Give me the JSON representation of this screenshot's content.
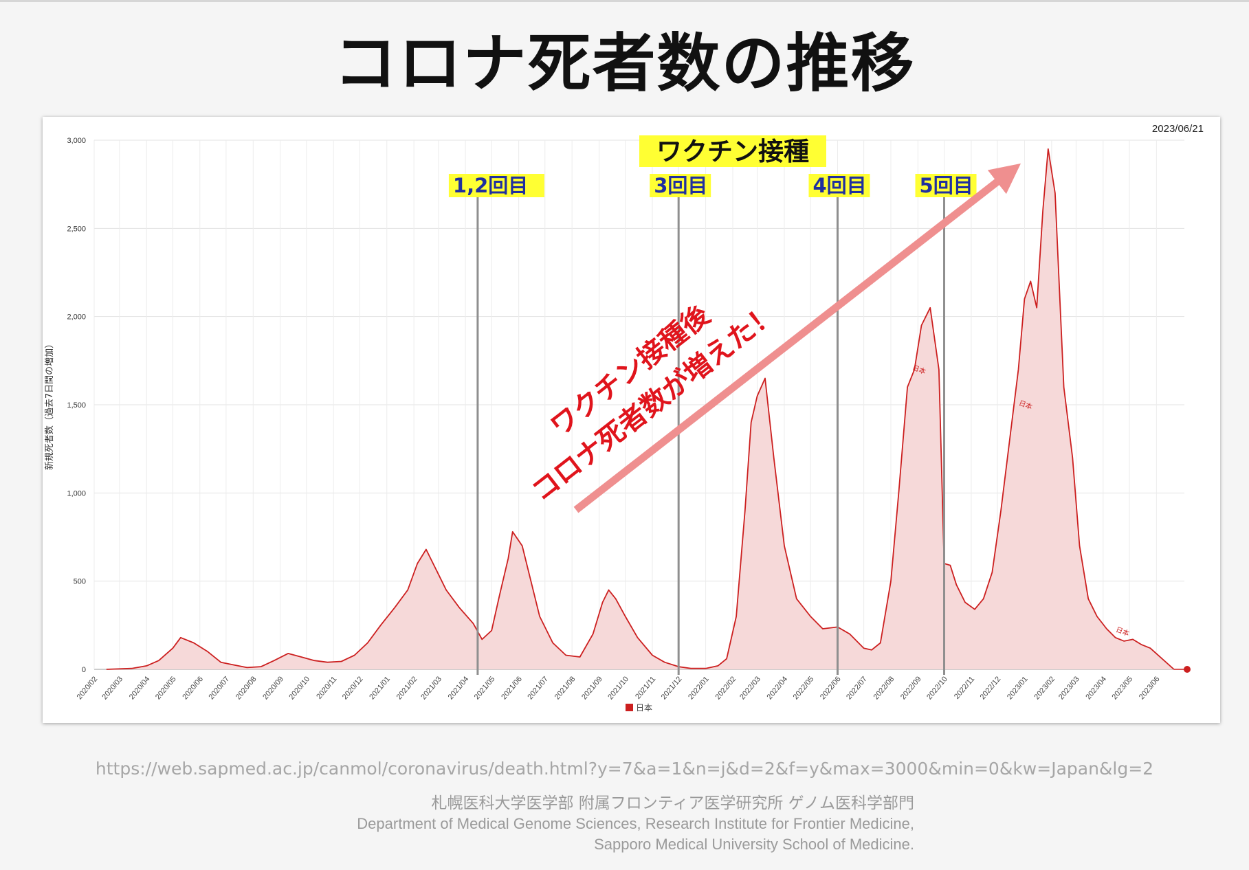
{
  "slide": {
    "title": "コロナ死者数の推移",
    "source_url": "https://web.sapmed.ac.jp/canmol/coronavirus/death.html?y=7&a=1&n=j&d=2&f=y&max=3000&min=0&kw=Japan&lg=2",
    "credit_jp": "札幌医科大学医学部 附属フロンティア医学研究所 ゲノム医科学部門",
    "credit_en_1": "Department of Medical Genome Sciences, Research Institute for Frontier Medicine,",
    "credit_en_2": "Sapporo Medical University School of Medicine."
  },
  "annotations": {
    "vaccine_title": "ワクチン接種",
    "doses": [
      {
        "label": "1,2回目",
        "date": "2021/04/15"
      },
      {
        "label": "3回目",
        "date": "2021/12/01"
      },
      {
        "label": "4回目",
        "date": "2022/06/01"
      },
      {
        "label": "5回目",
        "date": "2022/10/01"
      }
    ],
    "arrow_text_1": "ワクチン接種後",
    "arrow_text_2": "コロナ死者数が増えた！",
    "arrow_color": "#ef8f8f",
    "highlight_color": "#ffff33",
    "dose_text_color": "#1f2fa0",
    "claim_text_color": "#e0141c"
  },
  "chart_data": {
    "type": "area",
    "title": "",
    "date_label": "2023/06/21",
    "ylabel": "新規死者数（過去7日間の増加）",
    "xlabel": "",
    "ylim": [
      0,
      3000
    ],
    "yticks": [
      0,
      500,
      1000,
      1500,
      2000,
      2500,
      3000
    ],
    "ytick_labels": [
      "0",
      "500",
      "1,000",
      "1,500",
      "2,000",
      "2,500",
      "3,000"
    ],
    "grid": true,
    "legend": "bottom-center",
    "series_color": "#cc1f1f",
    "fill_color": "#f6d9d9",
    "xtick_labels": [
      "2020/02",
      "2020/03",
      "2020/04",
      "2020/05",
      "2020/06",
      "2020/07",
      "2020/08",
      "2020/09",
      "2020/10",
      "2020/11",
      "2020/12",
      "2021/01",
      "2021/02",
      "2021/03",
      "2021/04",
      "2021/05",
      "2021/06",
      "2021/07",
      "2021/08",
      "2021/09",
      "2021/10",
      "2021/11",
      "2021/12",
      "2022/01",
      "2022/02",
      "2022/03",
      "2022/04",
      "2022/05",
      "2022/06",
      "2022/07",
      "2022/08",
      "2022/09",
      "2022/10",
      "2022/11",
      "2022/12",
      "2023/01",
      "2023/02",
      "2023/03",
      "2023/04",
      "2023/05",
      "2023/06"
    ],
    "series": [
      {
        "name": "日本",
        "x": [
          "2020/02/15",
          "2020/03/15",
          "2020/04/01",
          "2020/04/15",
          "2020/05/01",
          "2020/05/10",
          "2020/05/25",
          "2020/06/10",
          "2020/06/25",
          "2020/07/10",
          "2020/07/25",
          "2020/08/10",
          "2020/08/25",
          "2020/09/10",
          "2020/09/25",
          "2020/10/10",
          "2020/10/25",
          "2020/11/10",
          "2020/11/25",
          "2020/12/10",
          "2020/12/25",
          "2021/01/10",
          "2021/01/25",
          "2021/02/05",
          "2021/02/15",
          "2021/02/25",
          "2021/03/10",
          "2021/03/25",
          "2021/04/10",
          "2021/04/20",
          "2021/05/01",
          "2021/05/10",
          "2021/05/20",
          "2021/05/25",
          "2021/06/05",
          "2021/06/15",
          "2021/06/25",
          "2021/07/10",
          "2021/07/25",
          "2021/08/10",
          "2021/08/25",
          "2021/09/05",
          "2021/09/12",
          "2021/09/20",
          "2021/10/01",
          "2021/10/15",
          "2021/11/01",
          "2021/11/15",
          "2021/12/01",
          "2021/12/15",
          "2022/01/01",
          "2022/01/15",
          "2022/01/25",
          "2022/02/05",
          "2022/02/15",
          "2022/02/22",
          "2022/03/01",
          "2022/03/10",
          "2022/03/20",
          "2022/04/01",
          "2022/04/15",
          "2022/05/01",
          "2022/05/15",
          "2022/06/01",
          "2022/06/15",
          "2022/07/01",
          "2022/07/10",
          "2022/07/20",
          "2022/08/01",
          "2022/08/10",
          "2022/08/20",
          "2022/08/28",
          "2022/09/05",
          "2022/09/15",
          "2022/09/25",
          "2022/10/01",
          "2022/10/08",
          "2022/10/15",
          "2022/10/25",
          "2022/11/05",
          "2022/11/15",
          "2022/11/25",
          "2022/12/05",
          "2022/12/15",
          "2022/12/25",
          "2023/01/01",
          "2023/01/08",
          "2023/01/15",
          "2023/01/22",
          "2023/01/28",
          "2023/02/05",
          "2023/02/15",
          "2023/02/25",
          "2023/03/05",
          "2023/03/15",
          "2023/03/25",
          "2023/04/05",
          "2023/04/15",
          "2023/04/25",
          "2023/05/05",
          "2023/05/15",
          "2023/05/25",
          "2023/06/21"
        ],
        "values": [
          0,
          5,
          20,
          50,
          120,
          180,
          150,
          100,
          40,
          25,
          10,
          15,
          50,
          90,
          70,
          50,
          40,
          45,
          80,
          150,
          250,
          350,
          450,
          600,
          680,
          580,
          450,
          350,
          260,
          170,
          220,
          420,
          630,
          780,
          700,
          500,
          300,
          150,
          80,
          70,
          200,
          380,
          450,
          400,
          300,
          180,
          80,
          40,
          15,
          5,
          5,
          20,
          60,
          300,
          900,
          1400,
          1550,
          1650,
          1200,
          700,
          400,
          300,
          230,
          240,
          200,
          120,
          110,
          150,
          500,
          1000,
          1600,
          1700,
          1950,
          2050,
          1700,
          600,
          590,
          480,
          380,
          340,
          400,
          550,
          900,
          1300,
          1700,
          2100,
          2200,
          2050,
          2600,
          2950,
          2700,
          1600,
          1200,
          700,
          400,
          300,
          230,
          180,
          160,
          170,
          140,
          120,
          0
        ]
      }
    ],
    "series_labels_on_chart": [
      "日本",
      "日本",
      "日本"
    ]
  }
}
